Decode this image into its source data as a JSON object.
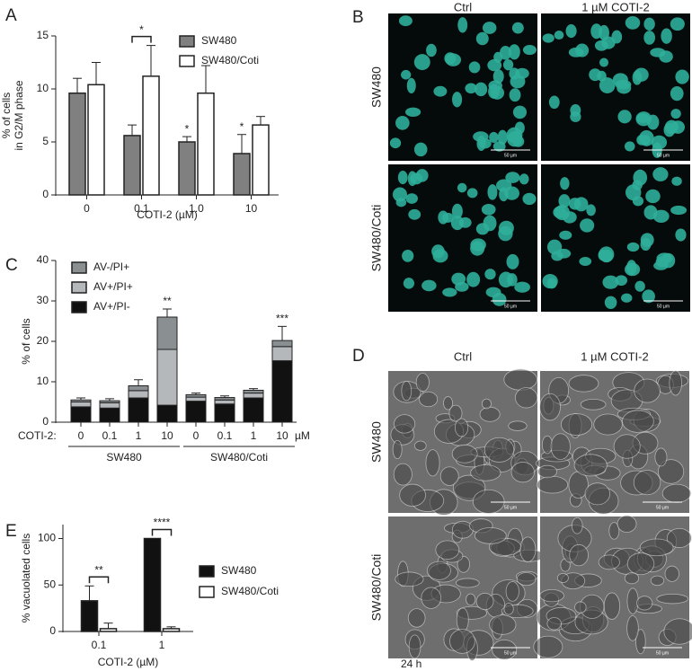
{
  "panel_letters": [
    "A",
    "B",
    "C",
    "D",
    "E"
  ],
  "chart_data": [
    {
      "type": "bar",
      "ylabel": [
        "% of cells",
        "in G2/M phase"
      ],
      "xlabel": "COTI-2 (µM)",
      "categories": [
        "0",
        "0.1",
        "1.0",
        "10"
      ],
      "series": [
        {
          "name": "SW480",
          "color": "#808080",
          "values": [
            9.6,
            5.6,
            5.0,
            3.9
          ],
          "errors": [
            1.4,
            1.0,
            0.5,
            1.8
          ]
        },
        {
          "name": "SW480/Coti",
          "color": "#ffffff",
          "values": [
            10.4,
            11.2,
            9.6,
            6.6
          ],
          "errors": [
            2.1,
            2.9,
            2.6,
            0.8
          ]
        }
      ],
      "ylim": [
        0,
        15
      ],
      "yticks": [
        0,
        5,
        10,
        15
      ],
      "annotations": [
        {
          "text": "*",
          "category": 1,
          "bracket": true
        },
        {
          "text": "*",
          "category": 2,
          "series": 0
        },
        {
          "text": "*",
          "category": 3,
          "series": 0
        }
      ]
    },
    {
      "type": "stacked_bar",
      "ylabel": [
        "% of cells"
      ],
      "x_prefix": "COTI-2:",
      "x_unit": "µM",
      "categories": [
        "0",
        "0.1",
        "1",
        "10",
        "0",
        "0.1",
        "1",
        "10"
      ],
      "groups": [
        {
          "label": "SW480",
          "span": [
            0,
            3
          ]
        },
        {
          "label": "SW480/Coti",
          "span": [
            4,
            7
          ]
        }
      ],
      "series": [
        {
          "name": "AV+/PI-",
          "color": "#111111",
          "values": [
            3.8,
            3.5,
            6.0,
            4.2,
            5.2,
            4.5,
            6.0,
            15.2
          ]
        },
        {
          "name": "AV+/PI+",
          "color": "#b4b8bb",
          "values": [
            1.2,
            1.3,
            1.8,
            13.8,
            1.0,
            1.0,
            1.2,
            3.5
          ]
        },
        {
          "name": "AV-/PI+",
          "color": "#8a8f92",
          "values": [
            0.5,
            0.5,
            1.2,
            8.0,
            0.6,
            0.6,
            0.7,
            1.5
          ],
          "errors": [
            0.5,
            0.5,
            1.5,
            2.0,
            0.4,
            0.4,
            0.4,
            3.5
          ]
        }
      ],
      "ylim": [
        0,
        40
      ],
      "yticks": [
        0,
        10,
        20,
        30,
        40
      ],
      "annotations": [
        {
          "text": "**",
          "category": 3
        },
        {
          "text": "***",
          "category": 7
        }
      ]
    },
    {
      "type": "bar",
      "ylabel": [
        "% vacuolated cells"
      ],
      "xlabel": "COTI-2 (µM)",
      "categories": [
        "0.1",
        "1"
      ],
      "series": [
        {
          "name": "SW480",
          "color": "#111111",
          "values": [
            33,
            100
          ],
          "errors": [
            16,
            0
          ]
        },
        {
          "name": "SW480/Coti",
          "color": "#ffffff",
          "values": [
            3,
            3
          ],
          "errors": [
            6,
            2
          ]
        }
      ],
      "ylim": [
        0,
        115
      ],
      "yticks": [
        0,
        50,
        100
      ],
      "annotations": [
        {
          "text": "**",
          "category": 0,
          "bracket": true
        },
        {
          "text": "****",
          "category": 1,
          "bracket": true
        }
      ]
    }
  ],
  "images": [
    {
      "columns": [
        "Ctrl",
        "1 µM COTI-2"
      ],
      "rows": [
        "SW480",
        "SW480/Coti"
      ],
      "scale_bar": "50 µm"
    },
    {
      "columns": [
        "Ctrl",
        "1 µM COTI-2"
      ],
      "rows": [
        "SW480",
        "SW480/Coti"
      ],
      "scale_bar": "50 µm",
      "footnote": "24 h"
    }
  ]
}
